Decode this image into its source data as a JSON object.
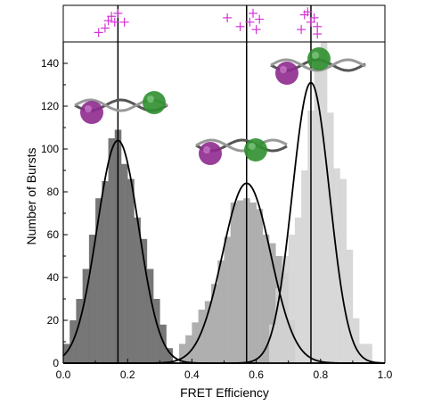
{
  "chart_data": {
    "type": "bar",
    "title": "",
    "xlabel": "FRET Efficiency",
    "ylabel": "Number of Bursts",
    "xlim": [
      0.0,
      1.0
    ],
    "ylim": [
      0,
      150
    ],
    "x_ticks": [
      0.0,
      0.2,
      0.4,
      0.6,
      0.8,
      1.0
    ],
    "x_tick_labels": [
      "0.0",
      "0.2",
      "0.4",
      "0.6",
      "0.8",
      "1.0"
    ],
    "y_ticks": [
      0,
      20,
      40,
      60,
      80,
      100,
      120,
      140
    ],
    "y_tick_labels": [
      "0",
      "20",
      "40",
      "60",
      "80",
      "100",
      "120",
      "140"
    ],
    "grid": false,
    "bin_width": 0.02,
    "colors": {
      "low": "#6b6b6b",
      "mid": "#a8a8a8",
      "high": "#d4d4d4",
      "fit": "#000000",
      "marker": "#d633d6",
      "dye_donor": "#8e2a8e",
      "dye_acceptor": "#2f8f2f"
    },
    "series": [
      {
        "x": [
          0.0,
          0.02,
          0.04,
          0.06,
          0.08,
          0.1,
          0.12,
          0.14,
          0.16,
          0.18,
          0.2,
          0.22,
          0.24,
          0.26,
          0.28,
          0.3,
          0.32
        ],
        "values": [
          9,
          20,
          30,
          44,
          60,
          77,
          85,
          105,
          109,
          93,
          86,
          68,
          58,
          44,
          30,
          18,
          7
        ]
      },
      {
        "x": [
          0.36,
          0.38,
          0.4,
          0.42,
          0.44,
          0.46,
          0.48,
          0.5,
          0.52,
          0.54,
          0.56,
          0.58,
          0.6,
          0.62,
          0.64,
          0.66,
          0.68,
          0.7
        ],
        "values": [
          9,
          13,
          19,
          25,
          29,
          37,
          48,
          59,
          75,
          76,
          77,
          75,
          72,
          60,
          56,
          50,
          42,
          20
        ]
      },
      {
        "x": [
          0.64,
          0.66,
          0.68,
          0.7,
          0.72,
          0.74,
          0.76,
          0.78,
          0.8,
          0.82,
          0.84,
          0.86,
          0.88,
          0.9,
          0.92,
          0.94
        ],
        "values": [
          18,
          35,
          50,
          60,
          68,
          90,
          118,
          143,
          150,
          117,
          91,
          86,
          53,
          21,
          9,
          9
        ]
      }
    ],
    "fits": [
      {
        "center": 0.17,
        "amplitude": 104,
        "sigma": 0.065
      },
      {
        "center": 0.57,
        "amplitude": 84,
        "sigma": 0.075
      },
      {
        "center": 0.77,
        "amplitude": 131,
        "sigma": 0.058
      }
    ],
    "vertical_lines": [
      0.17,
      0.57,
      0.77
    ],
    "top_panel_markers": [
      {
        "x": 0.11,
        "level": 0.2
      },
      {
        "x": 0.13,
        "level": 0.35
      },
      {
        "x": 0.14,
        "level": 0.6
      },
      {
        "x": 0.15,
        "level": 0.75
      },
      {
        "x": 0.16,
        "level": 0.55
      },
      {
        "x": 0.17,
        "level": 0.85
      },
      {
        "x": 0.19,
        "level": 0.55
      },
      {
        "x": 0.51,
        "level": 0.7
      },
      {
        "x": 0.55,
        "level": 0.4
      },
      {
        "x": 0.58,
        "level": 0.55
      },
      {
        "x": 0.59,
        "level": 0.85
      },
      {
        "x": 0.6,
        "level": 0.3
      },
      {
        "x": 0.61,
        "level": 0.65
      },
      {
        "x": 0.74,
        "level": 0.3
      },
      {
        "x": 0.75,
        "level": 0.8
      },
      {
        "x": 0.76,
        "level": 0.9
      },
      {
        "x": 0.77,
        "level": 0.55
      },
      {
        "x": 0.78,
        "level": 0.7
      },
      {
        "x": 0.79,
        "level": 0.4
      },
      {
        "x": 0.79,
        "level": 0.15
      }
    ]
  }
}
